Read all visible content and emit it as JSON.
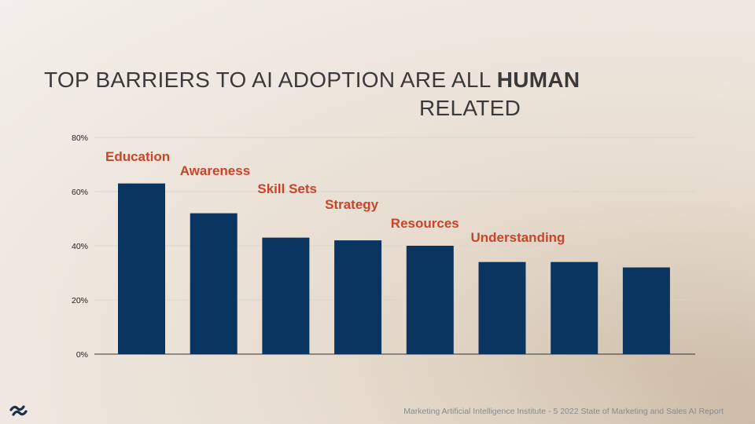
{
  "title": {
    "line1": "TOP BARRIERS TO AI ADOPTION  ARE ALL ",
    "emphasis": "HUMAN",
    "line2": "RELATED"
  },
  "chart_data": {
    "type": "bar",
    "title": "TOP BARRIERS TO AI ADOPTION ARE ALL HUMAN RELATED",
    "categories": [
      "Education",
      "Awareness",
      "Skill Sets",
      "Strategy",
      "Resources",
      "Understanding",
      "",
      ""
    ],
    "values": [
      63,
      52,
      43,
      42,
      40,
      34,
      34,
      32
    ],
    "y_ticks": [
      "0%",
      "20%",
      "40%",
      "60%",
      "80%"
    ],
    "y_tick_values": [
      0,
      20,
      40,
      60,
      80
    ],
    "ylim": [
      0,
      80
    ],
    "xlabel": "",
    "ylabel": "",
    "grid": true,
    "bar_color": "#0b3561",
    "label_color": "#c9452a"
  },
  "source": "Marketing Artificial Intelligence Institute - 5 2022 State of Marketing and Sales AI Report",
  "logo": {
    "icon": "s-wave-logo-icon",
    "color": "#1c2f4a"
  }
}
